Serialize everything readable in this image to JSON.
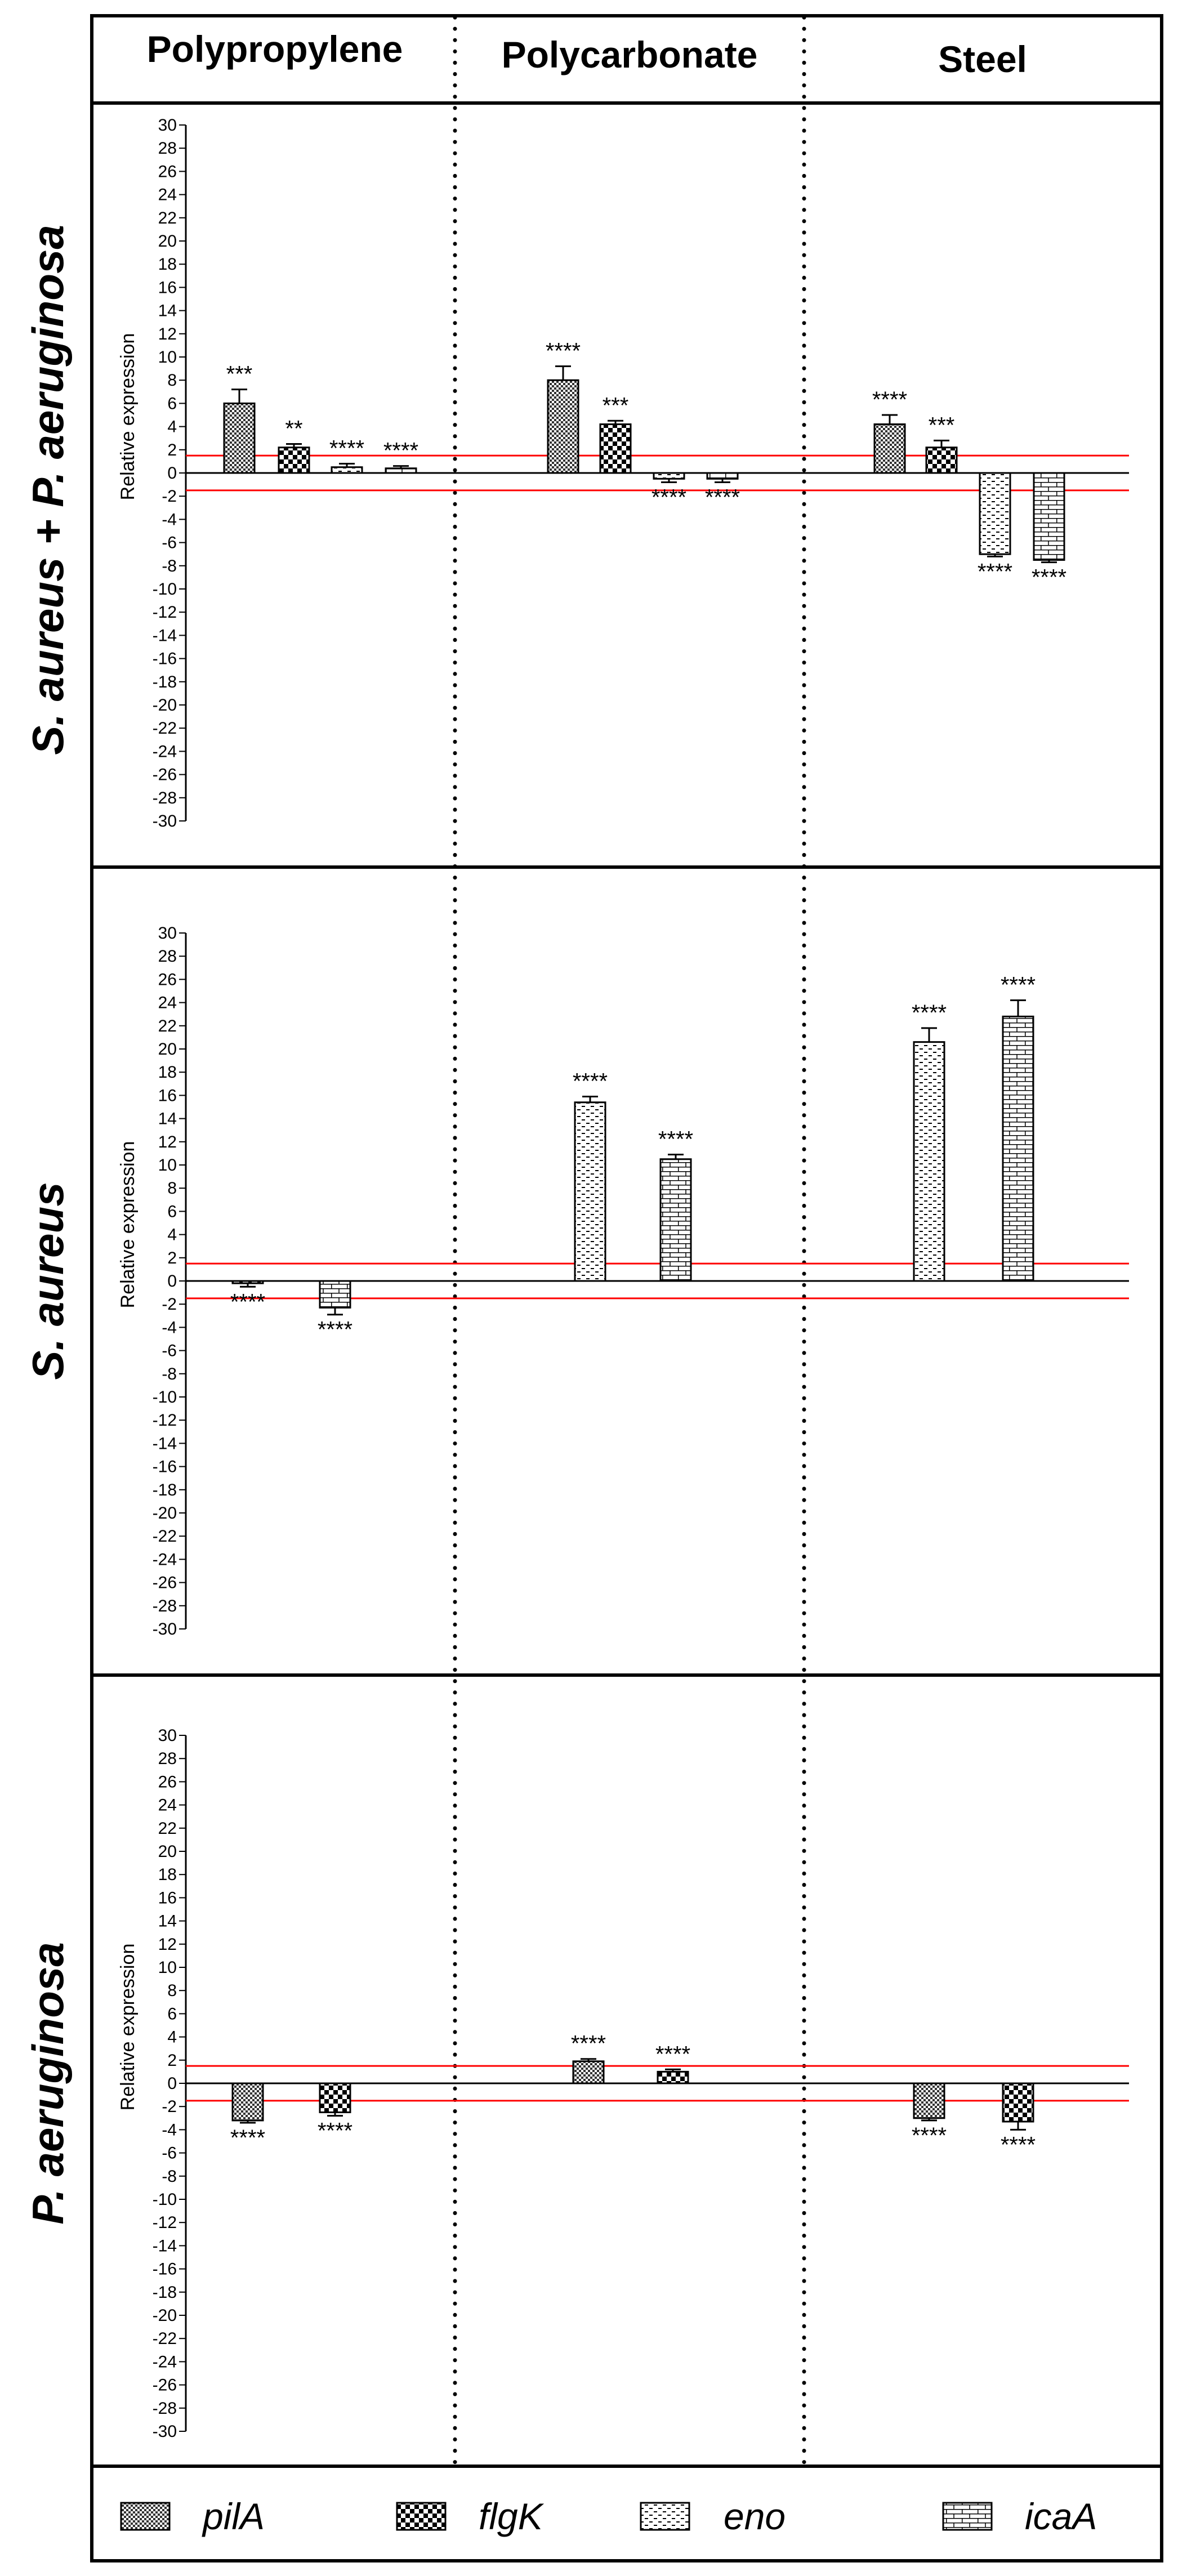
{
  "chart_data": {
    "type": "bar",
    "title": "",
    "columns": [
      "Polypropylene",
      "Polycarbonate",
      "Steel"
    ],
    "ylabel": "Relative expression",
    "ylim": [
      -30,
      30
    ],
    "ytick_step": 2,
    "reference_lines": [
      1.5,
      -1.5
    ],
    "reference_line_color": "#ff0000",
    "legend": [
      {
        "name": "pilA",
        "pattern": "checker-fine"
      },
      {
        "name": "flgK",
        "pattern": "checker-coarse"
      },
      {
        "name": "eno",
        "pattern": "dashes"
      },
      {
        "name": "icaA",
        "pattern": "bricks"
      }
    ],
    "panels": [
      {
        "row_label": "S. aureus + P. aeruginosa",
        "groups": [
          {
            "column": "Polypropylene",
            "bars": [
              {
                "gene": "pilA",
                "value": 6.0,
                "error": 1.2,
                "sig": "***"
              },
              {
                "gene": "flgK",
                "value": 2.2,
                "error": 0.3,
                "sig": "**"
              },
              {
                "gene": "eno",
                "value": 0.5,
                "error": 0.3,
                "sig": "****"
              },
              {
                "gene": "icaA",
                "value": 0.4,
                "error": 0.2,
                "sig": "****"
              }
            ]
          },
          {
            "column": "Polycarbonate",
            "bars": [
              {
                "gene": "pilA",
                "value": 8.0,
                "error": 1.2,
                "sig": "****"
              },
              {
                "gene": "flgK",
                "value": 4.2,
                "error": 0.3,
                "sig": "***"
              },
              {
                "gene": "eno",
                "value": -0.5,
                "error": 0.3,
                "sig": "****"
              },
              {
                "gene": "icaA",
                "value": -0.5,
                "error": 0.3,
                "sig": "****"
              }
            ]
          },
          {
            "column": "Steel",
            "bars": [
              {
                "gene": "pilA",
                "value": 4.2,
                "error": 0.8,
                "sig": "****"
              },
              {
                "gene": "flgK",
                "value": 2.2,
                "error": 0.6,
                "sig": "***"
              },
              {
                "gene": "eno",
                "value": -7.0,
                "error": 0.2,
                "sig": "****"
              },
              {
                "gene": "icaA",
                "value": -7.5,
                "error": 0.2,
                "sig": "****"
              }
            ]
          }
        ]
      },
      {
        "row_label": "S. aureus",
        "groups": [
          {
            "column": "Polypropylene",
            "bars": [
              {
                "gene": "eno",
                "value": -0.2,
                "error": 0.3,
                "sig": "****"
              },
              {
                "gene": "icaA",
                "value": -2.3,
                "error": 0.6,
                "sig": "****"
              }
            ]
          },
          {
            "column": "Polycarbonate",
            "bars": [
              {
                "gene": "eno",
                "value": 15.4,
                "error": 0.5,
                "sig": "****"
              },
              {
                "gene": "icaA",
                "value": 10.5,
                "error": 0.4,
                "sig": "****"
              }
            ]
          },
          {
            "column": "Steel",
            "bars": [
              {
                "gene": "eno",
                "value": 20.6,
                "error": 1.2,
                "sig": "****"
              },
              {
                "gene": "icaA",
                "value": 22.8,
                "error": 1.4,
                "sig": "****"
              }
            ]
          }
        ]
      },
      {
        "row_label": "P. aeruginosa",
        "groups": [
          {
            "column": "Polypropylene",
            "bars": [
              {
                "gene": "pilA",
                "value": -3.2,
                "error": 0.2,
                "sig": "****"
              },
              {
                "gene": "flgK",
                "value": -2.5,
                "error": 0.3,
                "sig": "****"
              }
            ]
          },
          {
            "column": "Polycarbonate",
            "bars": [
              {
                "gene": "pilA",
                "value": 1.9,
                "error": 0.2,
                "sig": "****"
              },
              {
                "gene": "flgK",
                "value": 1.0,
                "error": 0.2,
                "sig": "****"
              }
            ]
          },
          {
            "column": "Steel",
            "bars": [
              {
                "gene": "pilA",
                "value": -3.0,
                "error": 0.2,
                "sig": "****"
              },
              {
                "gene": "flgK",
                "value": -3.3,
                "error": 0.7,
                "sig": "****"
              }
            ]
          }
        ]
      }
    ]
  }
}
